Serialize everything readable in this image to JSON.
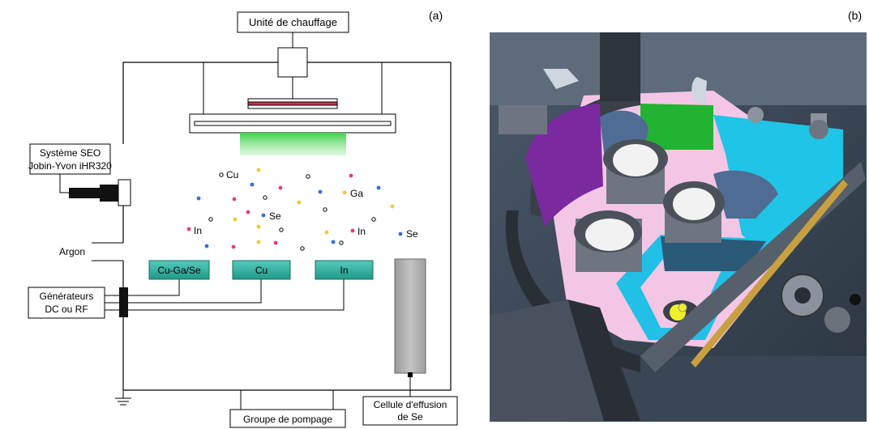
{
  "panel_a": {
    "label": "(a)",
    "heating_unit": "Unité de chauffage",
    "oes_line1": "Système SEO",
    "oes_line2": "Jobin-Yvon iHR320",
    "argon": "Argon",
    "generators_line1": "Générateurs",
    "generators_line2": "DC ou RF",
    "pumping": "Groupe de pompage",
    "effusion_line1": "Cellule d'effusion",
    "effusion_line2": "de Se",
    "targets": [
      "Cu-Ga/Se",
      "Cu",
      "In"
    ],
    "species": {
      "cu": "Cu",
      "ga": "Ga",
      "se1": "Se",
      "in1": "In",
      "in2": "In",
      "se2": "Se"
    },
    "colors": {
      "target_fill": "#2fb3a3",
      "glow": "#5fe06a",
      "heater_red": "#d0304a",
      "atom_red": "#e0406a",
      "atom_blue": "#2f6fe0",
      "atom_yellow": "#f0c830",
      "effusion_cell": "#b3b3b3"
    }
  },
  "panel_b": {
    "label": "(b)"
  }
}
